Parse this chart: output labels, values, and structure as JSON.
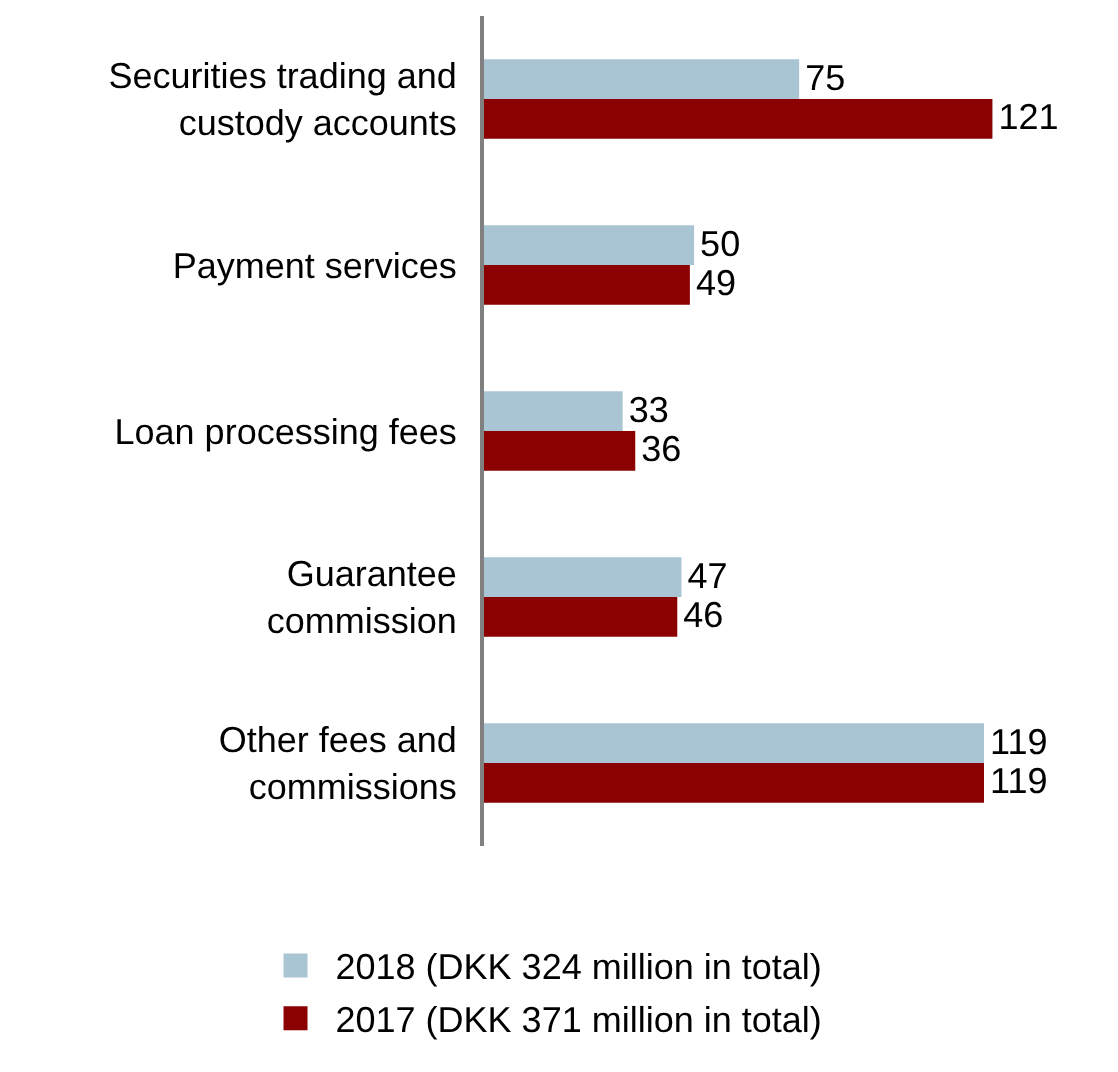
{
  "chart_data": {
    "type": "bar",
    "orientation": "horizontal",
    "categories": [
      "Securities trading and\ncustody accounts",
      "Payment services",
      "Loan processing fees",
      "Guarantee\ncommission",
      "Other fees and\ncommissions"
    ],
    "series": [
      {
        "name": "2018 (DKK 324 million in total)",
        "color": "#a9c4d3",
        "values": [
          75,
          50,
          33,
          47,
          119
        ]
      },
      {
        "name": "2017 (DKK 371 million in total)",
        "color": "#8b0000",
        "values": [
          121,
          49,
          36,
          46,
          119
        ]
      }
    ],
    "data_labels": true,
    "legend": "bottom"
  }
}
